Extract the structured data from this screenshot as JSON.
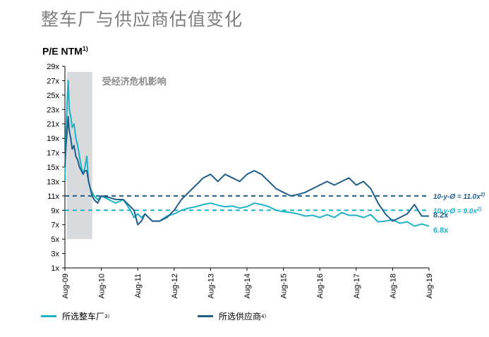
{
  "page": {
    "title": "整车厂与供应商估值变化"
  },
  "chart_data": {
    "type": "line",
    "ylabel": "P/E NTM",
    "ylabel_note": "1)",
    "ylim": [
      1,
      29
    ],
    "yticks": [
      1,
      3,
      5,
      7,
      9,
      11,
      13,
      15,
      17,
      19,
      21,
      23,
      25,
      27,
      29
    ],
    "ytick_suffix": "x",
    "x_categories": [
      "Aug-09",
      "Aug-10",
      "Aug-11",
      "Aug-12",
      "Aug-13",
      "Aug-14",
      "Aug-15",
      "Aug-16",
      "Aug-17",
      "Aug-18",
      "Aug-19"
    ],
    "crisis_shade": {
      "start": 0.05,
      "end": 0.75,
      "label": "受经济危机影响"
    },
    "series": [
      {
        "name": "所选整车厂",
        "note": "3)",
        "color": "#1cb3c8",
        "end_label": "6.8x",
        "x": [
          0,
          0.03,
          0.06,
          0.09,
          0.12,
          0.16,
          0.2,
          0.25,
          0.3,
          0.35,
          0.4,
          0.45,
          0.5,
          0.55,
          0.6,
          0.65,
          0.7,
          0.75,
          0.8,
          0.9,
          1,
          1.2,
          1.4,
          1.6,
          1.8,
          1.9,
          2,
          2.1,
          2.2,
          2.4,
          2.6,
          2.8,
          3,
          3.2,
          3.4,
          3.6,
          3.8,
          4,
          4.2,
          4.4,
          4.6,
          4.8,
          5,
          5.2,
          5.4,
          5.6,
          5.8,
          6,
          6.2,
          6.4,
          6.6,
          6.8,
          7,
          7.2,
          7.4,
          7.6,
          7.8,
          8,
          8.2,
          8.4,
          8.6,
          8.8,
          9,
          9.2,
          9.4,
          9.6,
          9.8,
          10
        ],
        "y": [
          13,
          20,
          24,
          27,
          23,
          22,
          20.5,
          21,
          19,
          18,
          16.5,
          15,
          14,
          15,
          16.5,
          13,
          12,
          11.5,
          11,
          10.5,
          11,
          10.5,
          10,
          10.5,
          9,
          8,
          8.5,
          8,
          8.5,
          7.5,
          7.5,
          8.2,
          8.5,
          9,
          9.3,
          9.5,
          9.8,
          10,
          9.7,
          9.5,
          9.6,
          9.3,
          9.5,
          10,
          9.8,
          9.5,
          9,
          8.8,
          8.7,
          8.5,
          8.2,
          8.3,
          8,
          8.4,
          8,
          8.7,
          8.3,
          8.3,
          8,
          8.4,
          7.4,
          7.5,
          7.7,
          7.2,
          7.4,
          6.8,
          7.1,
          6.8
        ]
      },
      {
        "name": "所选供应商",
        "note": "4)",
        "color": "#1f5f8b",
        "end_label": "8.2x",
        "x": [
          0,
          0.03,
          0.06,
          0.09,
          0.12,
          0.16,
          0.2,
          0.25,
          0.3,
          0.35,
          0.4,
          0.45,
          0.5,
          0.55,
          0.6,
          0.65,
          0.7,
          0.75,
          0.8,
          0.9,
          1,
          1.2,
          1.4,
          1.6,
          1.8,
          1.9,
          2,
          2.1,
          2.2,
          2.4,
          2.6,
          2.8,
          3,
          3.2,
          3.4,
          3.6,
          3.8,
          4,
          4.2,
          4.4,
          4.6,
          4.8,
          5,
          5.2,
          5.4,
          5.6,
          5.8,
          6,
          6.2,
          6.4,
          6.6,
          6.8,
          7,
          7.2,
          7.4,
          7.6,
          7.8,
          8,
          8.2,
          8.4,
          8.6,
          8.8,
          9,
          9.2,
          9.4,
          9.6,
          9.8,
          10
        ],
        "y": [
          15,
          18,
          20,
          22,
          20,
          19,
          17.5,
          18,
          16.5,
          16,
          15,
          14.5,
          14,
          14.5,
          14.5,
          13,
          12,
          11,
          10.5,
          10,
          11,
          10.8,
          10.5,
          10.5,
          9.5,
          9,
          7,
          7.5,
          8.5,
          7.5,
          7.5,
          8,
          9,
          10.5,
          11.5,
          12.5,
          13.5,
          14,
          13,
          14,
          13.5,
          13,
          14,
          14.5,
          14,
          13,
          12,
          11.5,
          11,
          11.2,
          11.5,
          12,
          12.5,
          13,
          12.5,
          13,
          13.5,
          12.5,
          13,
          12,
          10,
          8.5,
          7.5,
          8,
          8.5,
          9.8,
          8.2,
          8.2
        ]
      }
    ],
    "reference_lines": [
      {
        "label": "10-y-Ø = 11.0x",
        "note": "2)",
        "value": 11.0,
        "color": "#1f5f8b"
      },
      {
        "label": "10-y-Ø = 9.0x",
        "note": "2)",
        "value": 9.0,
        "color": "#1cb3c8"
      }
    ]
  }
}
